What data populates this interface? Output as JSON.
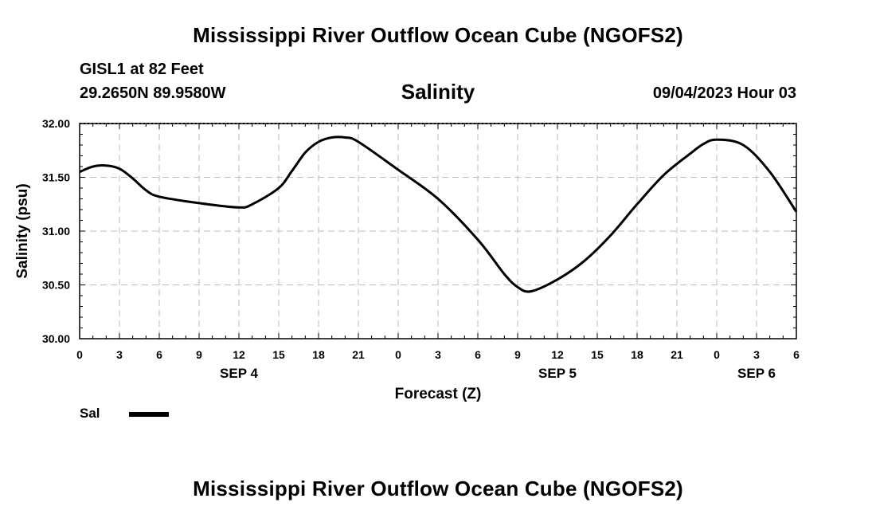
{
  "page": {
    "title_top": "Mississippi River Outflow Ocean Cube (NGOFS2)",
    "title_bottom": "Mississippi River Outflow Ocean Cube (NGOFS2)",
    "station": "GISL1 at 82 Feet",
    "coordinates": "29.2650N  89.9580W",
    "subtitle": "Salinity",
    "datetime": "09/04/2023 Hour 03"
  },
  "chart_data": {
    "type": "line",
    "title": "Salinity",
    "xlabel": "Forecast (Z)",
    "ylabel": "Salinity (psu)",
    "ylim": [
      30.0,
      32.0
    ],
    "xlim_hours": [
      0,
      54
    ],
    "grid": true,
    "y_ticks": [
      "30.00",
      "30.50",
      "31.00",
      "31.50",
      "32.00"
    ],
    "x_tick_labels": [
      "0",
      "3",
      "6",
      "9",
      "12",
      "15",
      "18",
      "21",
      "0",
      "3",
      "6",
      "9",
      "12",
      "15",
      "18",
      "21",
      "0",
      "3",
      "6"
    ],
    "date_labels": [
      {
        "text": "SEP 4",
        "hour": 12
      },
      {
        "text": "SEP 5",
        "hour": 36
      },
      {
        "text": "SEP 6",
        "hour": 51
      }
    ],
    "legend": [
      {
        "name": "Sal",
        "color": "#000000"
      }
    ],
    "legend_position": "bottom-left",
    "series": [
      {
        "name": "Sal",
        "color": "#000000",
        "x": [
          0,
          1,
          2,
          3,
          4,
          5,
          6,
          9,
          12,
          13,
          15,
          16,
          17,
          18,
          19,
          20,
          21,
          24,
          27,
          30,
          32,
          33,
          34,
          36,
          38,
          40,
          42,
          44,
          46,
          47,
          48,
          50,
          52,
          54
        ],
        "values": [
          31.55,
          31.6,
          31.61,
          31.58,
          31.49,
          31.38,
          31.32,
          31.26,
          31.22,
          31.25,
          31.4,
          31.56,
          31.73,
          31.83,
          31.87,
          31.87,
          31.83,
          31.57,
          31.3,
          30.92,
          30.6,
          30.48,
          30.44,
          30.55,
          30.72,
          30.96,
          31.25,
          31.52,
          31.72,
          31.81,
          31.85,
          31.8,
          31.55,
          31.18
        ]
      }
    ]
  }
}
